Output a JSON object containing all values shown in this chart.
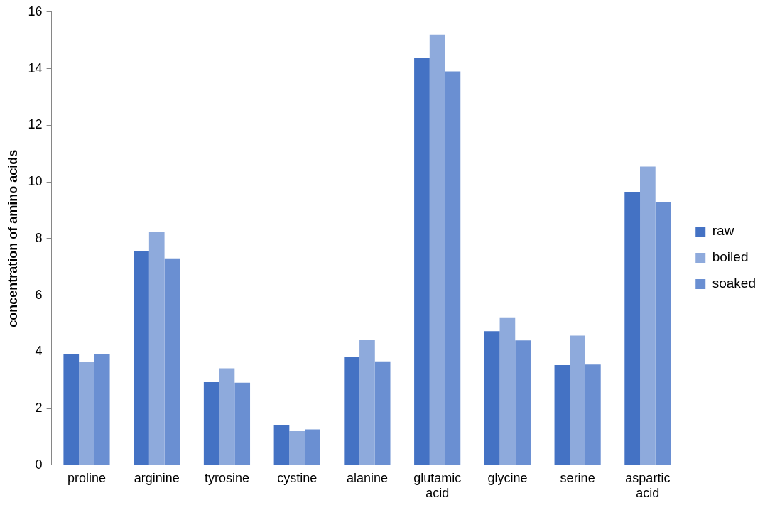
{
  "chart_data": {
    "type": "bar",
    "ylabel": "concentration of amino acids",
    "categories": [
      "proline",
      "arginine",
      "tyrosine",
      "cystine",
      "alanine",
      "glutamic acid",
      "glycine",
      "serine",
      "aspartic acid"
    ],
    "series": [
      {
        "name": "raw",
        "color": "#4472c4",
        "values": [
          3.93,
          7.55,
          2.93,
          1.41,
          3.83,
          14.38,
          4.73,
          3.53,
          9.65
        ]
      },
      {
        "name": "boiled",
        "color": "#8eaadc",
        "values": [
          3.64,
          8.24,
          3.42,
          1.2,
          4.43,
          15.2,
          5.22,
          4.57,
          10.54
        ]
      },
      {
        "name": "soaked",
        "color": "#6a8fd2",
        "values": [
          3.93,
          7.3,
          2.91,
          1.26,
          3.66,
          13.9,
          4.4,
          3.55,
          9.29
        ]
      }
    ],
    "ylim": [
      0,
      16
    ],
    "yticks": [
      0,
      2,
      4,
      6,
      8,
      10,
      12,
      14,
      16
    ],
    "grid": false,
    "legend": "right"
  }
}
